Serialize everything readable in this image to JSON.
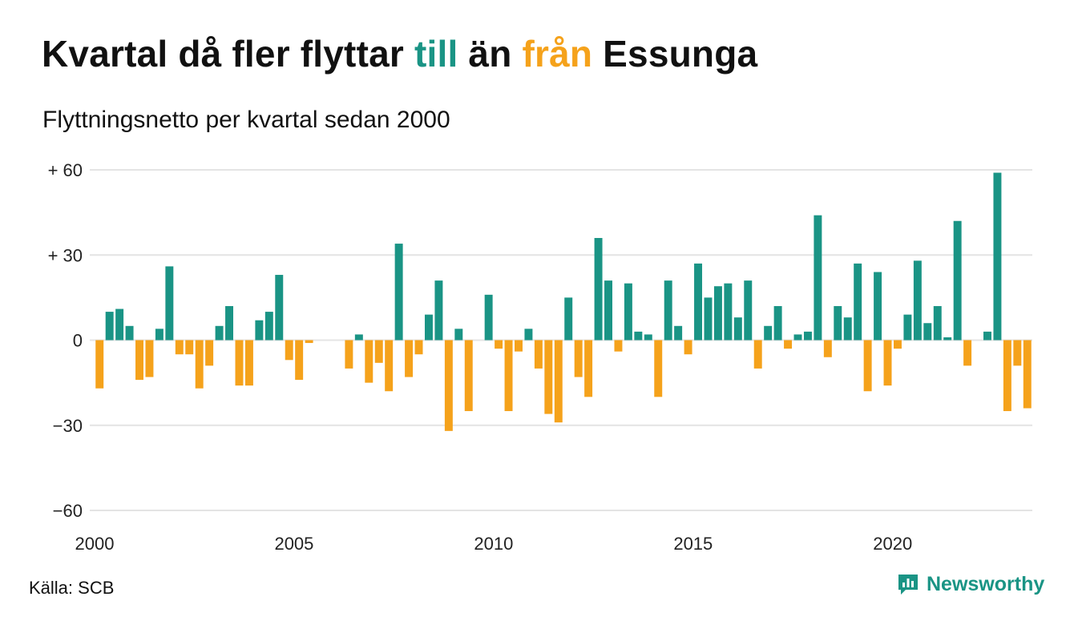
{
  "title": {
    "part1": "Kvartal då fler flyttar ",
    "pos_word": "till",
    "part2": " än ",
    "neg_word": "från",
    "part3": " Essunga"
  },
  "subtitle": "Flyttningsnetto per kvartal sedan 2000",
  "source": "Källa: SCB",
  "brand": {
    "name": "Newsworthy",
    "icon": "bar-chart-logo-icon"
  },
  "colors": {
    "positive": "#1a9485",
    "negative": "#f5a21b",
    "grid": "#e4e4e4",
    "text": "#111111"
  },
  "chart_data": {
    "type": "bar",
    "title": "",
    "xlabel": "",
    "ylabel": "",
    "ylim": [
      -60,
      60
    ],
    "xlim": [
      2000,
      2023.5
    ],
    "y_ticks": [
      {
        "value": 60,
        "label": "+ 60"
      },
      {
        "value": 30,
        "label": "+ 30"
      },
      {
        "value": 0,
        "label": "0"
      },
      {
        "value": -30,
        "label": "−30"
      },
      {
        "value": -60,
        "label": "−60"
      }
    ],
    "x_ticks": [
      {
        "value": 2000,
        "label": "2000"
      },
      {
        "value": 2005,
        "label": "2005"
      },
      {
        "value": 2010,
        "label": "2010"
      },
      {
        "value": 2015,
        "label": "2015"
      },
      {
        "value": 2020,
        "label": "2020"
      }
    ],
    "grid": true,
    "legend": "none",
    "categories": [
      "2000 K1",
      "2000 K2",
      "2000 K3",
      "2000 K4",
      "2001 K1",
      "2001 K2",
      "2001 K3",
      "2001 K4",
      "2002 K1",
      "2002 K2",
      "2002 K3",
      "2002 K4",
      "2003 K1",
      "2003 K2",
      "2003 K3",
      "2003 K4",
      "2004 K1",
      "2004 K2",
      "2004 K3",
      "2004 K4",
      "2005 K1",
      "2005 K2",
      "2005 K3",
      "2005 K4",
      "2006 K1",
      "2006 K2",
      "2006 K3",
      "2006 K4",
      "2007 K1",
      "2007 K2",
      "2007 K3",
      "2007 K4",
      "2008 K1",
      "2008 K2",
      "2008 K3",
      "2008 K4",
      "2009 K1",
      "2009 K2",
      "2009 K3",
      "2009 K4",
      "2010 K1",
      "2010 K2",
      "2010 K3",
      "2010 K4",
      "2011 K1",
      "2011 K2",
      "2011 K3",
      "2011 K4",
      "2012 K1",
      "2012 K2",
      "2012 K3",
      "2012 K4",
      "2013 K1",
      "2013 K2",
      "2013 K3",
      "2013 K4",
      "2014 K1",
      "2014 K2",
      "2014 K3",
      "2014 K4",
      "2015 K1",
      "2015 K2",
      "2015 K3",
      "2015 K4",
      "2016 K1",
      "2016 K2",
      "2016 K3",
      "2016 K4",
      "2017 K1",
      "2017 K2",
      "2017 K3",
      "2017 K4",
      "2018 K1",
      "2018 K2",
      "2018 K3",
      "2018 K4",
      "2019 K1",
      "2019 K2",
      "2019 K3",
      "2019 K4",
      "2020 K1",
      "2020 K2",
      "2020 K3",
      "2020 K4",
      "2021 K1",
      "2021 K2",
      "2021 K3",
      "2021 K4",
      "2022 K1",
      "2022 K2",
      "2022 K3",
      "2022 K4",
      "2023 K1",
      "2023 K2"
    ],
    "values": [
      -17,
      10,
      11,
      5,
      -14,
      -13,
      4,
      26,
      -5,
      -5,
      -17,
      -9,
      5,
      12,
      -16,
      -16,
      7,
      10,
      23,
      -7,
      -14,
      -1,
      0,
      0,
      0,
      -10,
      2,
      -15,
      -8,
      -18,
      34,
      -13,
      -5,
      9,
      21,
      -32,
      4,
      -25,
      0,
      16,
      -3,
      -25,
      -4,
      4,
      -10,
      -26,
      -29,
      15,
      -13,
      -20,
      36,
      21,
      -4,
      20,
      3,
      2,
      -20,
      21,
      5,
      -5,
      27,
      15,
      19,
      20,
      8,
      21,
      -10,
      5,
      12,
      -3,
      2,
      3,
      44,
      -6,
      12,
      8,
      27,
      -18,
      24,
      -16,
      -3,
      9,
      28,
      6,
      12,
      1,
      42,
      -9,
      0,
      3,
      59,
      -25,
      -9,
      -24
    ]
  }
}
